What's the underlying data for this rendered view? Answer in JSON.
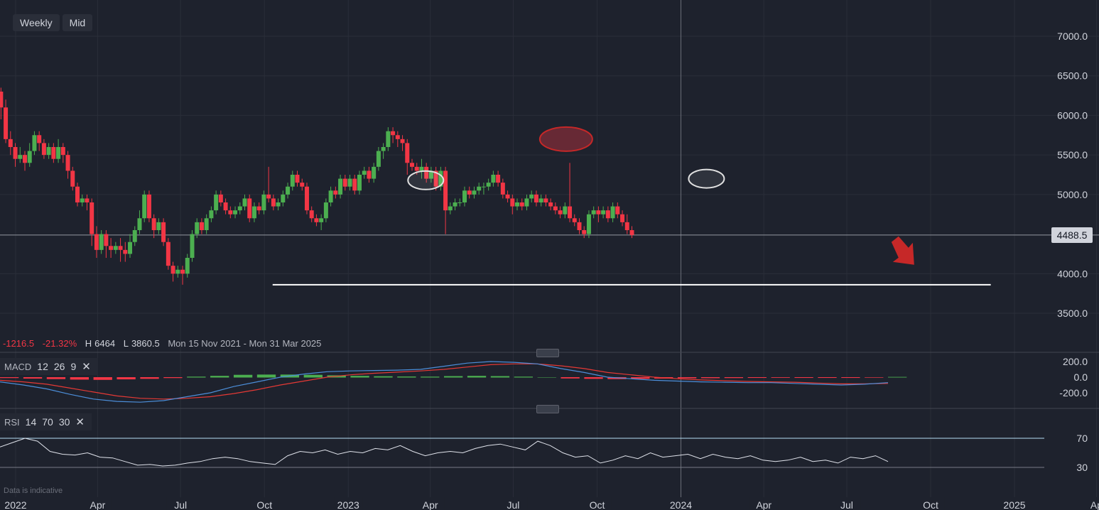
{
  "toolbar": {
    "interval": "Weekly",
    "price_source": "Mid"
  },
  "stats": {
    "change": "-1216.5",
    "change_pct": "-21.32%",
    "high_label": "H",
    "high": "6464",
    "low_label": "L",
    "low": "3860.5",
    "range": "Mon 15 Nov 2021 - Mon 31 Mar 2025"
  },
  "current_price_label": "4488.5",
  "disclaimer": "Data is indicative",
  "macd": {
    "name": "MACD",
    "fast": "12",
    "slow": "26",
    "signal": "9"
  },
  "rsi": {
    "name": "RSI",
    "length": "14",
    "upper": "70",
    "lower": "30"
  },
  "colors": {
    "up": "#4caf50",
    "down": "#f23645",
    "background": "#1e222d",
    "grid": "#2a2e39",
    "macd_line": "#4c8ed9",
    "signal_line": "#e53935",
    "support": "#ffffff"
  },
  "icons": {
    "close": "close-icon",
    "handle": "drag-handle-icon",
    "arrow": "down-arrow-icon"
  },
  "chart_data": {
    "type": "candlestick",
    "ylim": [
      3000,
      7350
    ],
    "y_ticks": [
      "7000.0",
      "6500.0",
      "6000.0",
      "5500.0",
      "5000.0",
      "4000.0",
      "3500.0"
    ],
    "x_ticks": [
      "2022",
      "Apr",
      "Jul",
      "Oct",
      "2023",
      "Apr",
      "Jul",
      "Oct",
      "2024",
      "Apr",
      "Jul",
      "Oct",
      "2025",
      "Ap"
    ],
    "x_tick_dates": [
      "2022-01-01",
      "2022-04-01",
      "2022-07-01",
      "2022-10-01",
      "2023-01-01",
      "2023-04-01",
      "2023-07-01",
      "2023-10-01",
      "2024-01-01",
      "2024-04-01",
      "2024-07-01",
      "2024-10-01",
      "2025-01-01",
      "2025-04-01"
    ],
    "grid": true,
    "current_price": 4488.5,
    "crosshair_date": "2024-01-01",
    "support_level": 3860.5,
    "support_from": "2022-10-10",
    "support_to": "2024-12-06",
    "highlight_ellipses": [
      {
        "date": "2023-03-27",
        "price": 5180,
        "color": "#e0e0e0"
      },
      {
        "date": "2023-08-28",
        "price": 5700,
        "color": "#f23645"
      },
      {
        "date": "2024-01-29",
        "price": 5200,
        "color": "#e0e0e0"
      }
    ],
    "forecast_arrow": "down",
    "series": [
      {
        "name": "Price",
        "candles": [
          [
            5350,
            5150,
            5450,
            5100
          ],
          [
            5150,
            5400,
            5450,
            5100
          ],
          [
            5400,
            5600,
            5650,
            5350
          ],
          [
            5600,
            5950,
            6000,
            5550
          ],
          [
            5950,
            6300,
            6464,
            5850
          ],
          [
            6300,
            6100,
            6350,
            5950
          ],
          [
            6100,
            5700,
            6200,
            5650
          ],
          [
            5700,
            5600,
            5800,
            5500
          ],
          [
            5600,
            5450,
            5650,
            5350
          ],
          [
            5450,
            5500,
            5600,
            5400
          ],
          [
            5500,
            5400,
            5550,
            5300
          ],
          [
            5400,
            5550,
            5650,
            5350
          ],
          [
            5550,
            5750,
            5800,
            5500
          ],
          [
            5750,
            5650,
            5800,
            5550
          ],
          [
            5650,
            5500,
            5700,
            5450
          ],
          [
            5500,
            5600,
            5650,
            5450
          ],
          [
            5600,
            5450,
            5650,
            5400
          ],
          [
            5450,
            5600,
            5700,
            5400
          ],
          [
            5600,
            5500,
            5650,
            5400
          ],
          [
            5500,
            5300,
            5550,
            5200
          ],
          [
            5300,
            5100,
            5350,
            5050
          ],
          [
            5100,
            4900,
            5150,
            4850
          ],
          [
            4900,
            4950,
            5000,
            4850
          ],
          [
            4950,
            4900,
            5000,
            4800
          ],
          [
            4900,
            4500,
            4950,
            4350
          ],
          [
            4500,
            4300,
            4600,
            4200
          ],
          [
            4300,
            4500,
            4550,
            4250
          ],
          [
            4500,
            4350,
            4550,
            4200
          ],
          [
            4350,
            4300,
            4450,
            4200
          ],
          [
            4300,
            4350,
            4400,
            4250
          ],
          [
            4350,
            4300,
            4450,
            4150
          ],
          [
            4300,
            4250,
            4400,
            4150
          ],
          [
            4250,
            4400,
            4500,
            4200
          ],
          [
            4400,
            4550,
            4600,
            4350
          ],
          [
            4550,
            4700,
            4800,
            4500
          ],
          [
            4700,
            5000,
            5050,
            4650
          ],
          [
            5000,
            4700,
            5050,
            4650
          ],
          [
            4700,
            4550,
            4750,
            4450
          ],
          [
            4550,
            4650,
            4700,
            4500
          ],
          [
            4650,
            4400,
            4700,
            4350
          ],
          [
            4400,
            4100,
            4450,
            4050
          ],
          [
            4100,
            4000,
            4150,
            3900
          ],
          [
            4000,
            4050,
            4100,
            3950
          ],
          [
            4050,
            4000,
            4100,
            3860.5
          ],
          [
            4000,
            4200,
            4250,
            3950
          ],
          [
            4200,
            4500,
            4550,
            4150
          ],
          [
            4500,
            4650,
            4700,
            4450
          ],
          [
            4650,
            4550,
            4700,
            4500
          ],
          [
            4550,
            4700,
            4750,
            4500
          ],
          [
            4700,
            4800,
            4850,
            4650
          ],
          [
            4800,
            5000,
            5050,
            4750
          ],
          [
            5000,
            4900,
            5050,
            4850
          ],
          [
            4900,
            4800,
            4950,
            4750
          ],
          [
            4800,
            4750,
            4850,
            4700
          ],
          [
            4750,
            4800,
            4850,
            4700
          ],
          [
            4800,
            4850,
            4900,
            4750
          ],
          [
            4850,
            4950,
            5000,
            4800
          ],
          [
            4950,
            4700,
            5000,
            4650
          ],
          [
            4700,
            4850,
            4900,
            4650
          ],
          [
            4850,
            4800,
            4900,
            4750
          ],
          [
            4800,
            5000,
            5050,
            4750
          ],
          [
            5000,
            4950,
            5350,
            4900
          ],
          [
            4950,
            4850,
            5000,
            4800
          ],
          [
            4850,
            4900,
            4950,
            4800
          ],
          [
            4900,
            5000,
            5050,
            4850
          ],
          [
            5000,
            5100,
            5150,
            4950
          ],
          [
            5100,
            5250,
            5300,
            5050
          ],
          [
            5250,
            5150,
            5300,
            5100
          ],
          [
            5150,
            5100,
            5200,
            5050
          ],
          [
            5100,
            4800,
            5150,
            4750
          ],
          [
            4800,
            4700,
            4850,
            4650
          ],
          [
            4700,
            4650,
            4750,
            4600
          ],
          [
            4650,
            4700,
            4750,
            4550
          ],
          [
            4700,
            4900,
            4950,
            4650
          ],
          [
            4900,
            5050,
            5100,
            4850
          ],
          [
            5050,
            5000,
            5100,
            4950
          ],
          [
            5000,
            5200,
            5250,
            4950
          ],
          [
            5200,
            5100,
            5250,
            5050
          ],
          [
            5100,
            5200,
            5250,
            5050
          ],
          [
            5200,
            5050,
            5250,
            5000
          ],
          [
            5050,
            5250,
            5300,
            5000
          ],
          [
            5250,
            5300,
            5350,
            5200
          ],
          [
            5300,
            5200,
            5350,
            5150
          ],
          [
            5200,
            5350,
            5400,
            5150
          ],
          [
            5350,
            5550,
            5600,
            5300
          ],
          [
            5550,
            5600,
            5650,
            5450
          ],
          [
            5600,
            5800,
            5850,
            5550
          ],
          [
            5800,
            5750,
            5850,
            5650
          ],
          [
            5750,
            5700,
            5800,
            5600
          ],
          [
            5700,
            5650,
            5750,
            5550
          ],
          [
            5650,
            5400,
            5700,
            5250
          ],
          [
            5400,
            5350,
            5450,
            5300
          ],
          [
            5350,
            5300,
            5400,
            5250
          ],
          [
            5300,
            5350,
            5450,
            5200
          ],
          [
            5350,
            5200,
            5400,
            5150
          ],
          [
            5200,
            5300,
            5350,
            5150
          ],
          [
            5300,
            5100,
            5350,
            5050
          ],
          [
            5100,
            5300,
            5350,
            5050
          ],
          [
            5300,
            4800,
            5350,
            4500
          ],
          [
            4800,
            4850,
            4900,
            4750
          ],
          [
            4850,
            4900,
            4950,
            4800
          ],
          [
            4900,
            4900,
            4950,
            4850
          ],
          [
            4900,
            5050,
            5100,
            4850
          ],
          [
            5050,
            5000,
            5100,
            4950
          ],
          [
            5000,
            5050,
            5100,
            4950
          ],
          [
            5050,
            5100,
            5150,
            5000
          ],
          [
            5100,
            5100,
            5150,
            5000
          ],
          [
            5100,
            5150,
            5200,
            5050
          ],
          [
            5150,
            5250,
            5300,
            5100
          ],
          [
            5250,
            5150,
            5300,
            5100
          ],
          [
            5150,
            5000,
            5200,
            4950
          ],
          [
            5000,
            4950,
            5050,
            4900
          ],
          [
            4950,
            4850,
            5000,
            4750
          ],
          [
            4850,
            4900,
            4950,
            4800
          ],
          [
            4900,
            4850,
            4950,
            4800
          ],
          [
            4850,
            4950,
            5000,
            4800
          ],
          [
            4950,
            5000,
            5050,
            4900
          ],
          [
            5000,
            4900,
            5050,
            4850
          ],
          [
            4900,
            4950,
            5000,
            4850
          ],
          [
            4950,
            4900,
            5000,
            4850
          ],
          [
            4900,
            4850,
            4950,
            4800
          ],
          [
            4850,
            4800,
            4900,
            4750
          ],
          [
            4800,
            4750,
            4850,
            4700
          ],
          [
            4750,
            4850,
            4900,
            4700
          ],
          [
            4850,
            4700,
            5400,
            4650
          ],
          [
            4700,
            4650,
            4750,
            4600
          ],
          [
            4650,
            4550,
            4700,
            4500
          ],
          [
            4550,
            4500,
            4600,
            4450
          ],
          [
            4500,
            4750,
            4800,
            4450
          ],
          [
            4750,
            4800,
            4850,
            4700
          ],
          [
            4800,
            4750,
            4850,
            4650
          ],
          [
            4750,
            4800,
            4850,
            4700
          ],
          [
            4800,
            4700,
            4850,
            4650
          ],
          [
            4700,
            4850,
            4900,
            4650
          ],
          [
            4850,
            4750,
            4900,
            4700
          ],
          [
            4750,
            4650,
            4800,
            4600
          ],
          [
            4650,
            4550,
            4750,
            4500
          ],
          [
            4550,
            4488.5,
            4600,
            4450
          ]
        ]
      }
    ],
    "macd": {
      "y_ticks": [
        "200.0",
        "0.0",
        "-200.0"
      ],
      "ylim": [
        -300,
        260
      ],
      "macd_line": [
        -60,
        -100,
        -150,
        -220,
        -280,
        -310,
        -320,
        -300,
        -250,
        -200,
        -120,
        -60,
        0,
        40,
        70,
        80,
        85,
        90,
        100,
        140,
        180,
        200,
        190,
        170,
        110,
        60,
        0,
        -20,
        -40,
        -50,
        -60,
        -65,
        -70,
        -70,
        -80,
        -90,
        -100,
        -90,
        -70
      ],
      "signal_line": [
        -40,
        -60,
        -90,
        -140,
        -190,
        -240,
        -270,
        -280,
        -270,
        -250,
        -210,
        -160,
        -100,
        -50,
        0,
        30,
        50,
        65,
        80,
        100,
        130,
        160,
        170,
        170,
        145,
        110,
        60,
        30,
        0,
        -20,
        -35,
        -45,
        -55,
        -60,
        -65,
        -75,
        -85,
        -85,
        -80
      ],
      "histogram": [
        -20,
        -40,
        -60,
        -80,
        -90,
        -70,
        -50,
        -20,
        20,
        50,
        90,
        100,
        100,
        90,
        70,
        50,
        35,
        25,
        20,
        40,
        50,
        40,
        20,
        0,
        -35,
        -50,
        -60,
        -50,
        -40,
        -30,
        -25,
        -20,
        -15,
        -10,
        -15,
        -15,
        -15,
        -5,
        10
      ]
    },
    "rsi": {
      "y_ticks": [
        "70",
        "30"
      ],
      "ylim": [
        18,
        82
      ],
      "values": [
        58,
        64,
        70,
        66,
        52,
        48,
        47,
        50,
        44,
        43,
        38,
        33,
        34,
        32,
        33,
        36,
        38,
        42,
        44,
        42,
        38,
        36,
        34,
        46,
        52,
        50,
        54,
        48,
        52,
        50,
        56,
        54,
        60,
        52,
        46,
        50,
        52,
        50,
        56,
        60,
        62,
        58,
        54,
        66,
        60,
        50,
        44,
        46,
        36,
        40,
        46,
        42,
        50,
        44,
        46,
        48,
        42,
        48,
        44,
        42,
        46,
        40,
        38,
        40,
        44,
        38,
        40,
        36,
        44,
        42,
        46,
        38
      ]
    }
  }
}
